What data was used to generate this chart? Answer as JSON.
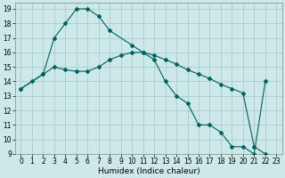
{
  "title": "",
  "xlabel": "Humidex (Indice chaleur)",
  "bg_color": "#cce8e8",
  "grid_color": "#aacccc",
  "line_color": "#006060",
  "xlim": [
    -0.5,
    23.5
  ],
  "ylim": [
    9,
    19.4
  ],
  "yticks": [
    9,
    10,
    11,
    12,
    13,
    14,
    15,
    16,
    17,
    18,
    19
  ],
  "xticks": [
    0,
    1,
    2,
    3,
    4,
    5,
    6,
    7,
    8,
    9,
    10,
    11,
    12,
    13,
    14,
    15,
    16,
    17,
    18,
    19,
    20,
    21,
    22,
    23
  ],
  "line1_x": [
    0,
    1,
    2,
    3,
    4,
    5,
    6,
    7,
    8,
    10,
    11,
    12,
    13,
    14,
    15,
    16,
    17,
    18,
    19,
    20,
    21,
    22
  ],
  "line1_y": [
    13.5,
    14.0,
    14.5,
    17.0,
    18.0,
    19.0,
    19.0,
    18.5,
    17.5,
    16.5,
    16.0,
    15.5,
    14.0,
    13.0,
    12.5,
    11.0,
    11.0,
    10.5,
    9.5,
    9.5,
    9.0,
    14.0
  ],
  "line2_x": [
    0,
    2,
    3,
    4,
    5,
    6,
    7,
    8,
    9,
    10,
    11,
    12,
    13,
    14,
    15,
    16,
    17,
    18,
    19,
    20,
    21,
    22
  ],
  "line2_y": [
    13.5,
    14.5,
    15.0,
    14.8,
    14.7,
    14.7,
    15.0,
    15.5,
    15.8,
    16.0,
    16.0,
    15.8,
    15.5,
    15.2,
    14.8,
    14.5,
    14.2,
    13.8,
    13.5,
    13.2,
    9.5,
    9.0
  ],
  "tick_fontsize": 5.5,
  "xlabel_fontsize": 6.5
}
